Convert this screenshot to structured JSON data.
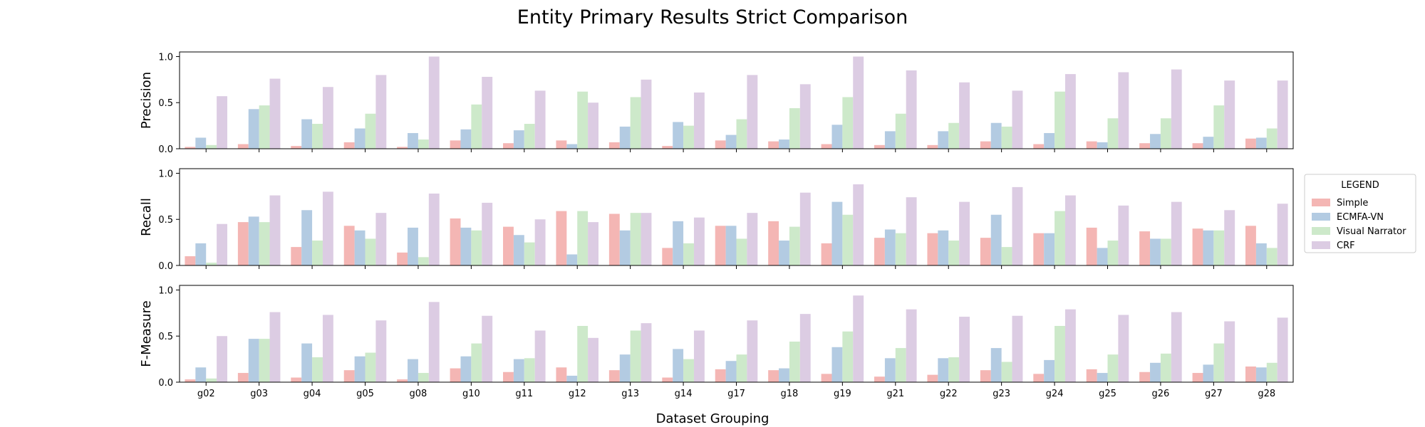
{
  "chart_data": {
    "type": "bar",
    "title": "Entity Primary Results Strict Comparison",
    "xlabel": "Dataset Grouping",
    "categories": [
      "g02",
      "g03",
      "g04",
      "g05",
      "g08",
      "g10",
      "g11",
      "g12",
      "g13",
      "g14",
      "g17",
      "g18",
      "g19",
      "g21",
      "g22",
      "g23",
      "g24",
      "g25",
      "g26",
      "g27",
      "g28"
    ],
    "series_colors": [
      "#f4b6b4",
      "#b3cbe2",
      "#cde9ca",
      "#dcccE3"
    ],
    "legend": {
      "title": "LEGEND",
      "placement": "right",
      "entries": [
        "Simple",
        "ECMFA-VN",
        "Visual Narrator",
        "CRF"
      ]
    },
    "ylim": [
      0,
      1.05
    ],
    "yticks": [
      "0.0",
      "0.5",
      "1.0"
    ],
    "panels": [
      {
        "ylabel": "Precision",
        "series": [
          {
            "name": "Simple",
            "values": [
              0.02,
              0.05,
              0.03,
              0.07,
              0.02,
              0.09,
              0.06,
              0.09,
              0.07,
              0.03,
              0.09,
              0.08,
              0.05,
              0.04,
              0.04,
              0.08,
              0.05,
              0.08,
              0.06,
              0.06,
              0.11
            ]
          },
          {
            "name": "ECMFA-VN",
            "values": [
              0.12,
              0.43,
              0.32,
              0.22,
              0.17,
              0.21,
              0.2,
              0.05,
              0.24,
              0.29,
              0.15,
              0.1,
              0.26,
              0.19,
              0.19,
              0.28,
              0.17,
              0.07,
              0.16,
              0.13,
              0.12
            ]
          },
          {
            "name": "Visual Narrator",
            "values": [
              0.04,
              0.47,
              0.27,
              0.38,
              0.1,
              0.48,
              0.27,
              0.62,
              0.56,
              0.25,
              0.32,
              0.44,
              0.56,
              0.38,
              0.28,
              0.24,
              0.62,
              0.33,
              0.33,
              0.47,
              0.22
            ]
          },
          {
            "name": "CRF",
            "values": [
              0.57,
              0.76,
              0.67,
              0.8,
              1.0,
              0.78,
              0.63,
              0.5,
              0.75,
              0.61,
              0.8,
              0.7,
              1.0,
              0.85,
              0.72,
              0.63,
              0.81,
              0.83,
              0.86,
              0.74,
              0.74
            ]
          }
        ]
      },
      {
        "ylabel": "Recall",
        "series": [
          {
            "name": "Simple",
            "values": [
              0.1,
              0.47,
              0.2,
              0.43,
              0.14,
              0.51,
              0.42,
              0.59,
              0.56,
              0.19,
              0.43,
              0.48,
              0.24,
              0.3,
              0.35,
              0.3,
              0.35,
              0.41,
              0.37,
              0.4,
              0.43
            ]
          },
          {
            "name": "ECMFA-VN",
            "values": [
              0.24,
              0.53,
              0.6,
              0.38,
              0.41,
              0.41,
              0.33,
              0.12,
              0.38,
              0.48,
              0.43,
              0.27,
              0.69,
              0.39,
              0.38,
              0.55,
              0.35,
              0.19,
              0.29,
              0.38,
              0.24
            ]
          },
          {
            "name": "Visual Narrator",
            "values": [
              0.03,
              0.47,
              0.27,
              0.29,
              0.09,
              0.38,
              0.25,
              0.59,
              0.57,
              0.24,
              0.29,
              0.42,
              0.55,
              0.35,
              0.27,
              0.2,
              0.59,
              0.27,
              0.29,
              0.38,
              0.19
            ]
          },
          {
            "name": "CRF",
            "values": [
              0.45,
              0.76,
              0.8,
              0.57,
              0.78,
              0.68,
              0.5,
              0.47,
              0.57,
              0.52,
              0.57,
              0.79,
              0.88,
              0.74,
              0.69,
              0.85,
              0.76,
              0.65,
              0.69,
              0.6,
              0.67
            ]
          }
        ]
      },
      {
        "ylabel": "F-Measure",
        "series": [
          {
            "name": "Simple",
            "values": [
              0.03,
              0.1,
              0.05,
              0.13,
              0.03,
              0.15,
              0.11,
              0.16,
              0.13,
              0.05,
              0.14,
              0.13,
              0.09,
              0.06,
              0.08,
              0.13,
              0.09,
              0.14,
              0.11,
              0.1,
              0.17
            ]
          },
          {
            "name": "ECMFA-VN",
            "values": [
              0.16,
              0.47,
              0.42,
              0.28,
              0.25,
              0.28,
              0.25,
              0.07,
              0.3,
              0.36,
              0.23,
              0.15,
              0.38,
              0.26,
              0.26,
              0.37,
              0.24,
              0.1,
              0.21,
              0.19,
              0.16
            ]
          },
          {
            "name": "Visual Narrator",
            "values": [
              0.04,
              0.47,
              0.27,
              0.32,
              0.1,
              0.42,
              0.26,
              0.61,
              0.56,
              0.25,
              0.3,
              0.44,
              0.55,
              0.37,
              0.27,
              0.22,
              0.61,
              0.3,
              0.31,
              0.42,
              0.21
            ]
          },
          {
            "name": "CRF",
            "values": [
              0.5,
              0.76,
              0.73,
              0.67,
              0.87,
              0.72,
              0.56,
              0.48,
              0.64,
              0.56,
              0.67,
              0.74,
              0.94,
              0.79,
              0.71,
              0.72,
              0.79,
              0.73,
              0.76,
              0.66,
              0.7
            ]
          }
        ]
      }
    ]
  }
}
